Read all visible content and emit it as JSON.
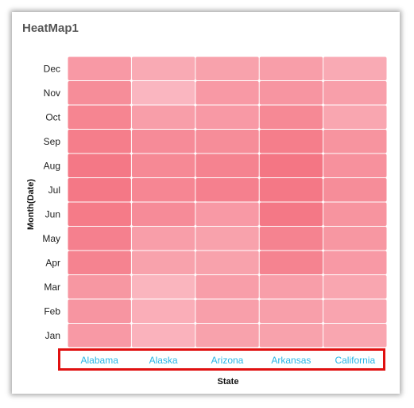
{
  "chart_data": {
    "type": "heatmap",
    "title": "HeatMap1",
    "xlabel": "State",
    "ylabel": "Month(Date)",
    "x_categories": [
      "Alabama",
      "Alaska",
      "Arizona",
      "Arkansas",
      "California"
    ],
    "y_categories": [
      "Jan",
      "Feb",
      "Mar",
      "Apr",
      "May",
      "Jun",
      "Jul",
      "Aug",
      "Sep",
      "Oct",
      "Nov",
      "Dec"
    ],
    "values": [
      [
        0.55,
        0.25,
        0.45,
        0.45,
        0.4
      ],
      [
        0.6,
        0.3,
        0.48,
        0.48,
        0.42
      ],
      [
        0.58,
        0.22,
        0.5,
        0.5,
        0.4
      ],
      [
        0.82,
        0.45,
        0.45,
        0.82,
        0.55
      ],
      [
        0.85,
        0.5,
        0.45,
        0.82,
        0.58
      ],
      [
        0.92,
        0.72,
        0.55,
        0.95,
        0.62
      ],
      [
        0.95,
        0.78,
        0.85,
        0.95,
        0.7
      ],
      [
        0.95,
        0.75,
        0.82,
        0.98,
        0.65
      ],
      [
        0.88,
        0.72,
        0.7,
        0.88,
        0.62
      ],
      [
        0.8,
        0.5,
        0.55,
        0.75,
        0.4
      ],
      [
        0.7,
        0.2,
        0.55,
        0.6,
        0.48
      ],
      [
        0.55,
        0.35,
        0.45,
        0.5,
        0.35
      ]
    ],
    "color_low": "#fcc7cf",
    "color_high": "#f47482",
    "grid": false,
    "legend": "none"
  },
  "highlight_color": "#e01010"
}
